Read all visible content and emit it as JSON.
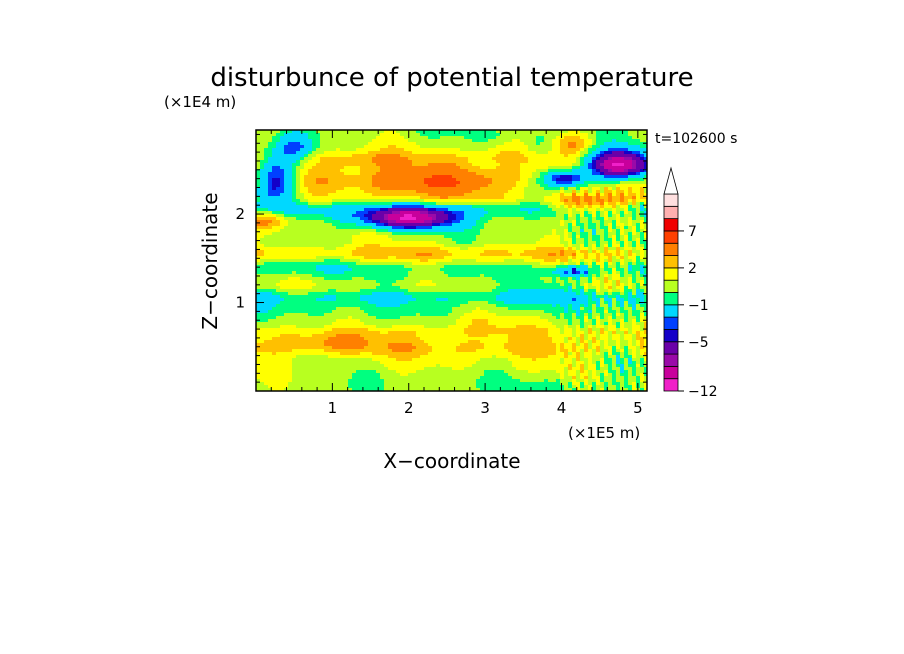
{
  "chart_data": {
    "type": "heatmap",
    "title": "disturbunce of potential temperature",
    "xlabel": "X−coordinate",
    "ylabel": "Z−coordinate",
    "x_unit": "(×1E5 m)",
    "y_unit": "(×1E4 m)",
    "time_label": "t=102600 s",
    "xlim": [
      0,
      5.12
    ],
    "ylim": [
      0,
      2.95
    ],
    "x_ticks": [
      1,
      2,
      3,
      4,
      5
    ],
    "x_tick_labels": [
      "1",
      "2",
      "3",
      "4",
      "5"
    ],
    "y_ticks": [
      1,
      2
    ],
    "y_tick_labels": [
      "1",
      "2"
    ],
    "colorbar": {
      "levels": [
        -12,
        -10,
        -8,
        -7,
        -5,
        -4,
        -3,
        -1,
        0,
        1,
        2,
        3,
        5,
        7,
        8,
        9
      ],
      "labeled_ticks": [
        -12,
        -5,
        -1,
        2,
        7
      ],
      "tick_labels": [
        "−12",
        "−5",
        "−1",
        "2",
        "7"
      ],
      "colors": [
        "#f020c8",
        "#c8009c",
        "#9a0aa8",
        "#6a00a8",
        "#1400c8",
        "#0040ff",
        "#00d8ff",
        "#00ff80",
        "#b8ff20",
        "#ffff00",
        "#ffc000",
        "#ff8000",
        "#ff4000",
        "#f00000",
        "#ffb0b0",
        "#ffe0e0"
      ],
      "extend_top": true
    },
    "layers": [
      {
        "z": 0.08,
        "v": 0.2
      },
      {
        "z": 0.18,
        "v": 0.6
      },
      {
        "z": 0.32,
        "v": 1.1
      },
      {
        "z": 0.5,
        "v": 2.3
      },
      {
        "z": 0.65,
        "v": 1.8
      },
      {
        "z": 0.78,
        "v": 0.6
      },
      {
        "z": 0.92,
        "v": -0.2
      },
      {
        "z": 1.05,
        "v": -1.3
      },
      {
        "z": 1.2,
        "v": 0.6
      },
      {
        "z": 1.38,
        "v": -0.3
      },
      {
        "z": 1.55,
        "v": 2.2
      },
      {
        "z": 1.7,
        "v": 0.7
      },
      {
        "z": 1.88,
        "v": 0.3
      },
      {
        "z": 2.05,
        "v": -1.6
      },
      {
        "z": 2.2,
        "v": 1.1
      },
      {
        "z": 2.4,
        "v": 2.2
      },
      {
        "z": 2.6,
        "v": 1.6
      },
      {
        "z": 2.75,
        "v": 0.6
      },
      {
        "z": 2.92,
        "v": 0.3
      }
    ],
    "features": [
      {
        "x": 2.3,
        "z": 2.35,
        "sx": 0.85,
        "sz": 0.18,
        "a": 3.0
      },
      {
        "x": 1.4,
        "z": 2.62,
        "sx": 0.7,
        "sz": 0.12,
        "a": 1.8
      },
      {
        "x": 3.2,
        "z": 2.7,
        "sx": 0.4,
        "sz": 0.12,
        "a": 1.3
      },
      {
        "x": 2.0,
        "z": 1.95,
        "sx": 0.62,
        "sz": 0.11,
        "a": -9.0
      },
      {
        "x": 0.25,
        "z": 2.4,
        "sx": 0.26,
        "sz": 0.26,
        "a": -7.0
      },
      {
        "x": 0.5,
        "z": 2.75,
        "sx": 0.22,
        "sz": 0.15,
        "a": -3.5
      },
      {
        "x": 0.15,
        "z": 1.95,
        "sx": 0.3,
        "sz": 0.14,
        "a": 4.0
      },
      {
        "x": 4.75,
        "z": 2.55,
        "sx": 0.42,
        "sz": 0.16,
        "a": -12.0
      },
      {
        "x": 4.05,
        "z": 2.4,
        "sx": 0.3,
        "sz": 0.1,
        "a": -7.0
      },
      {
        "x": 4.35,
        "z": 2.1,
        "sx": 0.55,
        "sz": 0.13,
        "a": 4.0
      },
      {
        "x": 4.15,
        "z": 2.8,
        "sx": 0.25,
        "sz": 0.12,
        "a": 2.5
      },
      {
        "x": 3.7,
        "z": 2.8,
        "sx": 0.18,
        "sz": 0.12,
        "a": -0.9
      },
      {
        "x": 2.8,
        "z": 0.75,
        "sx": 0.9,
        "sz": 0.12,
        "a": 1.0
      },
      {
        "x": 0.9,
        "z": 0.55,
        "sx": 0.5,
        "sz": 0.1,
        "a": 1.2
      },
      {
        "x": 4.15,
        "z": 1.35,
        "sx": 0.25,
        "sz": 0.06,
        "a": -4.0
      },
      {
        "x": 4.6,
        "z": 0.35,
        "sx": 0.4,
        "sz": 0.3,
        "a": -0.9
      },
      {
        "x": 3.9,
        "z": 1.15,
        "sx": 0.4,
        "sz": 0.12,
        "a": -0.8
      },
      {
        "x": 0.35,
        "z": 1.4,
        "sx": 0.6,
        "sz": 0.12,
        "a": -0.8
      }
    ]
  }
}
